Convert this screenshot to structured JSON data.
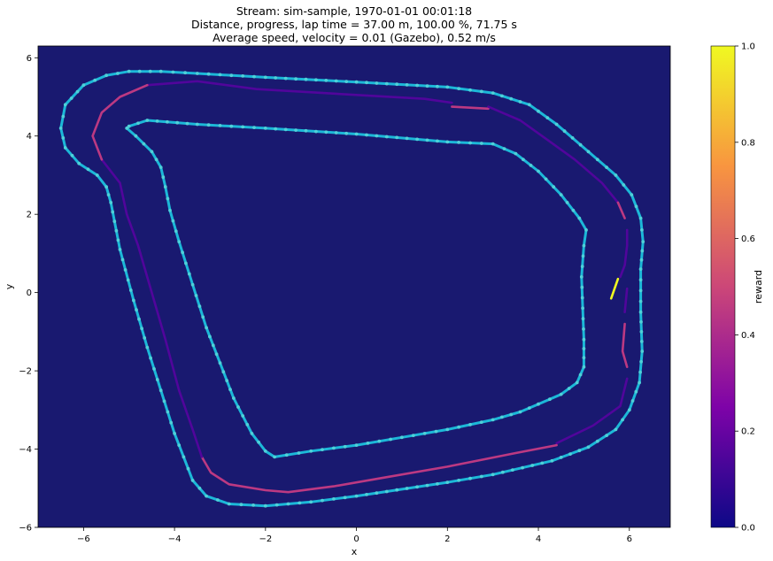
{
  "chart_data": {
    "type": "scatter",
    "title_lines": [
      "Stream: sim-sample, 1970-01-01 00:01:18",
      "Distance, progress, lap time = 37.00 m, 100.00 %, 71.75 s",
      "Average speed, velocity = 0.01 (Gazebo), 0.52 m/s"
    ],
    "xlabel": "x",
    "ylabel": "y",
    "xlim": [
      -7,
      6.9
    ],
    "ylim": [
      -6,
      6.3
    ],
    "xticks": [
      -6,
      -4,
      -2,
      0,
      2,
      4,
      6
    ],
    "yticks": [
      -6,
      -4,
      -2,
      0,
      2,
      4,
      6
    ],
    "xtick_labels": [
      "−6",
      "−4",
      "−2",
      "0",
      "2",
      "4",
      "6"
    ],
    "ytick_labels": [
      "−6",
      "−4",
      "−2",
      "0",
      "2",
      "4",
      "6"
    ],
    "background_color": "#191970",
    "track_color": "#1cb8d8",
    "track_marker_color": "#4fd0d8",
    "colorbar": {
      "label": "reward",
      "colormap": "plasma",
      "range": [
        0,
        1
      ],
      "ticks": [
        0.0,
        0.2,
        0.4,
        0.6,
        0.8,
        1.0
      ],
      "tick_labels": [
        "0.0",
        "0.2",
        "0.4",
        "0.6",
        "0.8",
        "1.0"
      ]
    },
    "outer_border": [
      [
        -4.3,
        5.65
      ],
      [
        -3.5,
        5.6
      ],
      [
        -2,
        5.5
      ],
      [
        0,
        5.38
      ],
      [
        2,
        5.25
      ],
      [
        3,
        5.1
      ],
      [
        3.8,
        4.8
      ],
      [
        4.4,
        4.3
      ],
      [
        5.1,
        3.6
      ],
      [
        5.7,
        3.0
      ],
      [
        6.05,
        2.5
      ],
      [
        6.25,
        1.9
      ],
      [
        6.3,
        1.3
      ],
      [
        6.25,
        0.6
      ],
      [
        6.25,
        -0.5
      ],
      [
        6.28,
        -1.5
      ],
      [
        6.22,
        -2.3
      ],
      [
        6.0,
        -3.0
      ],
      [
        5.7,
        -3.5
      ],
      [
        5.1,
        -3.95
      ],
      [
        4.3,
        -4.3
      ],
      [
        3,
        -4.65
      ],
      [
        2,
        -4.85
      ],
      [
        0,
        -5.2
      ],
      [
        -1,
        -5.35
      ],
      [
        -2,
        -5.45
      ],
      [
        -2.8,
        -5.4
      ],
      [
        -3.3,
        -5.2
      ],
      [
        -3.6,
        -4.8
      ],
      [
        -3.8,
        -4.2
      ],
      [
        -4,
        -3.6
      ],
      [
        -4.3,
        -2.5
      ],
      [
        -4.6,
        -1.4
      ],
      [
        -4.9,
        -0.2
      ],
      [
        -5.2,
        1.1
      ],
      [
        -5.4,
        2.3
      ],
      [
        -5.5,
        2.7
      ],
      [
        -5.7,
        3.0
      ],
      [
        -6.1,
        3.3
      ],
      [
        -6.4,
        3.7
      ],
      [
        -6.5,
        4.2
      ],
      [
        -6.4,
        4.8
      ],
      [
        -6.0,
        5.3
      ],
      [
        -5.5,
        5.55
      ],
      [
        -5.0,
        5.65
      ],
      [
        -4.3,
        5.65
      ]
    ],
    "inner_border": [
      [
        -5.0,
        4.25
      ],
      [
        -4.6,
        4.4
      ],
      [
        -3.5,
        4.3
      ],
      [
        -2,
        4.2
      ],
      [
        0,
        4.05
      ],
      [
        2,
        3.85
      ],
      [
        3,
        3.8
      ],
      [
        3.5,
        3.55
      ],
      [
        4.0,
        3.1
      ],
      [
        4.5,
        2.5
      ],
      [
        4.9,
        1.9
      ],
      [
        5.05,
        1.6
      ],
      [
        5.0,
        1.2
      ],
      [
        4.95,
        0.4
      ],
      [
        5.0,
        -1.2
      ],
      [
        5.0,
        -1.9
      ],
      [
        4.85,
        -2.3
      ],
      [
        4.5,
        -2.6
      ],
      [
        4.0,
        -2.85
      ],
      [
        3.6,
        -3.05
      ],
      [
        3,
        -3.25
      ],
      [
        2,
        -3.5
      ],
      [
        1,
        -3.7
      ],
      [
        0,
        -3.9
      ],
      [
        -1,
        -4.05
      ],
      [
        -1.8,
        -4.2
      ],
      [
        -2.0,
        -4.05
      ],
      [
        -2.3,
        -3.6
      ],
      [
        -2.7,
        -2.7
      ],
      [
        -3.0,
        -1.8
      ],
      [
        -3.3,
        -0.9
      ],
      [
        -3.6,
        0.2
      ],
      [
        -3.9,
        1.3
      ],
      [
        -4.1,
        2.1
      ],
      [
        -4.2,
        2.7
      ],
      [
        -4.3,
        3.2
      ],
      [
        -4.5,
        3.6
      ],
      [
        -4.85,
        4.0
      ],
      [
        -5.05,
        4.2
      ],
      [
        -5.0,
        4.25
      ]
    ],
    "racing_line": [
      {
        "reward": 0.15,
        "points": [
          [
            -4.6,
            5.3
          ],
          [
            -3.5,
            5.4
          ],
          [
            -2.2,
            5.2
          ],
          [
            0,
            5.05
          ],
          [
            1.5,
            4.95
          ],
          [
            2.1,
            4.85
          ]
        ]
      },
      {
        "reward": 0.45,
        "points": [
          [
            2.1,
            4.75
          ],
          [
            2.9,
            4.7
          ]
        ]
      },
      {
        "reward": 0.15,
        "points": [
          [
            2.9,
            4.75
          ],
          [
            3.6,
            4.4
          ],
          [
            4.2,
            3.9
          ],
          [
            4.8,
            3.4
          ],
          [
            5.4,
            2.8
          ],
          [
            5.75,
            2.3
          ]
        ]
      },
      {
        "reward": 0.45,
        "points": [
          [
            5.75,
            2.3
          ],
          [
            5.9,
            1.9
          ]
        ]
      },
      {
        "reward": 0.15,
        "points": [
          [
            5.95,
            1.6
          ],
          [
            5.95,
            1.2
          ],
          [
            5.9,
            0.7
          ],
          [
            5.8,
            0.4
          ]
        ]
      },
      {
        "reward": 1.0,
        "points": [
          [
            5.75,
            0.35
          ],
          [
            5.6,
            -0.15
          ]
        ]
      },
      {
        "reward": 0.15,
        "points": [
          [
            5.95,
            0.1
          ],
          [
            5.9,
            -0.5
          ]
        ]
      },
      {
        "reward": 0.45,
        "points": [
          [
            5.9,
            -0.8
          ],
          [
            5.85,
            -1.5
          ],
          [
            5.95,
            -1.9
          ]
        ]
      },
      {
        "reward": 0.15,
        "points": [
          [
            5.95,
            -2.2
          ],
          [
            5.8,
            -2.9
          ],
          [
            5.2,
            -3.4
          ],
          [
            4.4,
            -3.85
          ]
        ]
      },
      {
        "reward": 0.45,
        "points": [
          [
            4.4,
            -3.9
          ],
          [
            3.5,
            -4.1
          ],
          [
            2.0,
            -4.45
          ],
          [
            0.5,
            -4.75
          ],
          [
            -0.5,
            -4.95
          ],
          [
            -1.5,
            -5.1
          ],
          [
            -2.0,
            -5.05
          ],
          [
            -2.8,
            -4.9
          ],
          [
            -3.2,
            -4.6
          ],
          [
            -3.4,
            -4.2
          ]
        ]
      },
      {
        "reward": 0.15,
        "points": [
          [
            -3.4,
            -4.2
          ],
          [
            -3.6,
            -3.5
          ],
          [
            -3.9,
            -2.5
          ],
          [
            -4.2,
            -1.2
          ],
          [
            -4.5,
            0.0
          ],
          [
            -4.8,
            1.2
          ],
          [
            -5.05,
            2.0
          ],
          [
            -5.2,
            2.8
          ],
          [
            -5.6,
            3.4
          ]
        ]
      },
      {
        "reward": 0.45,
        "points": [
          [
            -5.6,
            3.4
          ],
          [
            -5.8,
            4.0
          ],
          [
            -5.6,
            4.6
          ],
          [
            -5.2,
            5.0
          ],
          [
            -4.6,
            5.3
          ]
        ]
      }
    ]
  }
}
